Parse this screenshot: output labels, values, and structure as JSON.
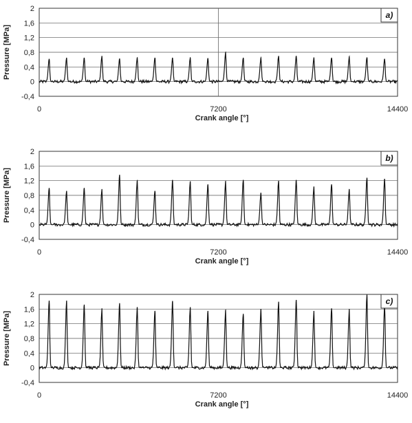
{
  "chart_data": [
    {
      "type": "line",
      "panel_label": "a)",
      "xlabel": "Crank angle [°]",
      "ylabel": "Pressure [MPa]",
      "xlim": [
        0,
        14400
      ],
      "ylim": [
        -0.4,
        2
      ],
      "x_ticks": [
        "0",
        "7200",
        "14400"
      ],
      "y_ticks": [
        "-0,4",
        "0",
        "0,4",
        "0,8",
        "1,2",
        "1,6",
        "2"
      ],
      "grid": "horizontal",
      "cursor_line_x": 7200,
      "baseline_noise": 0.08,
      "cycle_length": 720,
      "peak_x": [
        400,
        1100,
        1810,
        2520,
        3230,
        3940,
        4650,
        5360,
        6070,
        6780,
        7490,
        8200,
        8910,
        9620,
        10330,
        11040,
        11750,
        12460,
        13170,
        13880
      ],
      "peak_y": [
        0.62,
        0.65,
        0.65,
        0.7,
        0.63,
        0.65,
        0.65,
        0.65,
        0.65,
        0.64,
        0.8,
        0.65,
        0.65,
        0.7,
        0.7,
        0.66,
        0.65,
        0.68,
        0.66,
        0.62
      ],
      "series": [
        {
          "values": []
        }
      ]
    },
    {
      "type": "line",
      "panel_label": "b)",
      "xlabel": "Crank angle [°]",
      "ylabel": "Pressure [MPa]",
      "xlim": [
        0,
        14400
      ],
      "ylim": [
        -0.4,
        2
      ],
      "x_ticks": [
        "0",
        "7200",
        "14400"
      ],
      "y_ticks": [
        "-0,4",
        "0",
        "0,4",
        "0,8",
        "1,2",
        "1,6",
        "2"
      ],
      "grid": "horizontal",
      "baseline_noise": 0.08,
      "cycle_length": 720,
      "peak_x": [
        400,
        1100,
        1810,
        2520,
        3230,
        3940,
        4650,
        5360,
        6070,
        6780,
        7490,
        8200,
        8910,
        9620,
        10330,
        11040,
        11750,
        12460,
        13170,
        13880
      ],
      "peak_y": [
        1.0,
        0.92,
        1.0,
        0.97,
        1.36,
        1.2,
        0.92,
        1.22,
        1.18,
        1.1,
        1.18,
        1.22,
        0.87,
        1.2,
        1.22,
        1.04,
        1.1,
        0.97,
        1.28,
        1.25
      ],
      "series": [
        {
          "values": []
        }
      ]
    },
    {
      "type": "line",
      "panel_label": "c)",
      "xlabel": "Crank angle [°]",
      "ylabel": "Pressure [MPa]",
      "xlim": [
        0,
        14400
      ],
      "ylim": [
        -0.4,
        2
      ],
      "x_ticks": [
        "0",
        "7200",
        "14400"
      ],
      "y_ticks": [
        "-0,4",
        "0",
        "0,4",
        "0,8",
        "1,2",
        "1,6",
        "2"
      ],
      "grid": "horizontal",
      "baseline_noise": 0.08,
      "cycle_length": 720,
      "peak_x": [
        400,
        1100,
        1810,
        2520,
        3230,
        3940,
        4650,
        5360,
        6070,
        6780,
        7490,
        8200,
        8910,
        9620,
        10330,
        11040,
        11750,
        12460,
        13170,
        13880
      ],
      "peak_y": [
        1.83,
        1.83,
        1.72,
        1.62,
        1.76,
        1.65,
        1.55,
        1.82,
        1.65,
        1.55,
        1.57,
        1.47,
        1.6,
        1.8,
        1.85,
        1.55,
        1.62,
        1.6,
        1.99,
        1.7
      ],
      "series": [
        {
          "values": []
        }
      ]
    }
  ]
}
